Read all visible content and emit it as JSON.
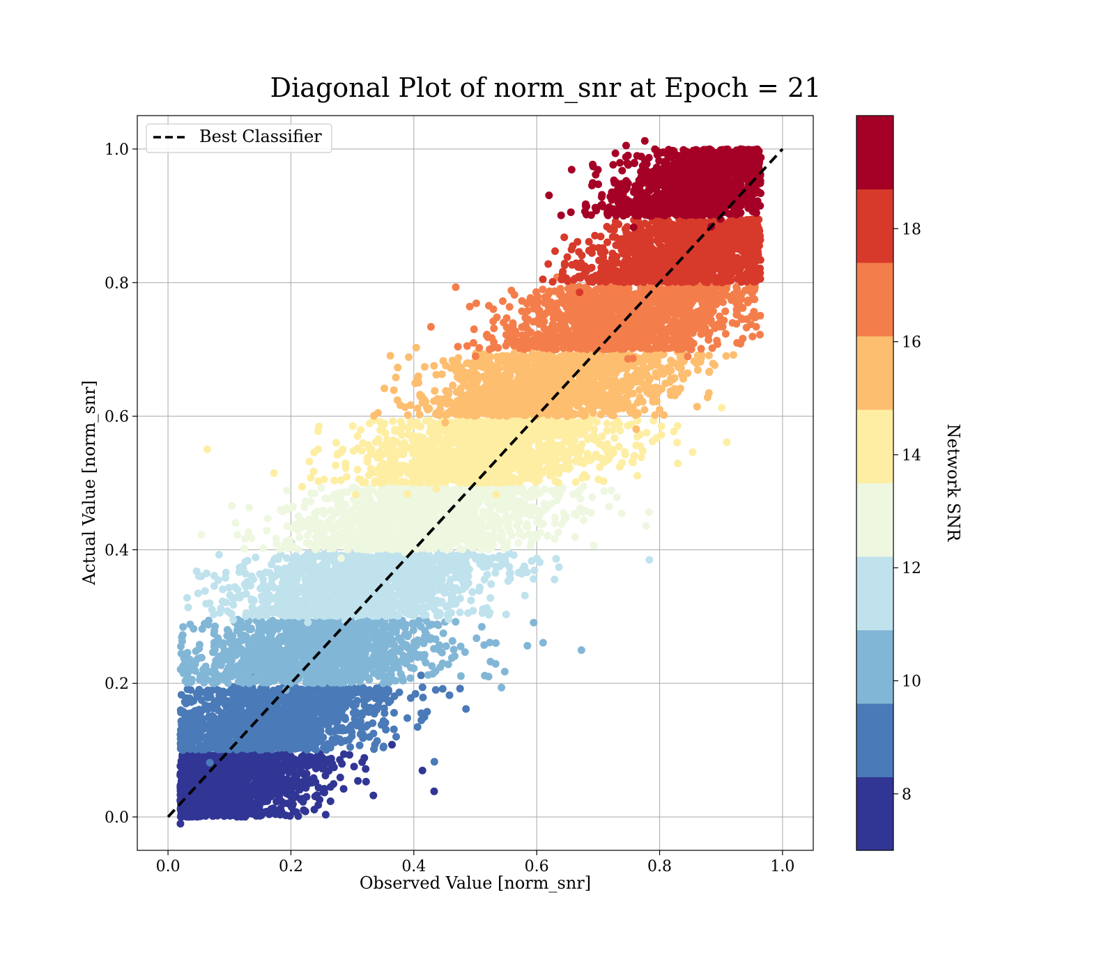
{
  "chart_data": {
    "type": "scatter",
    "title": "Diagonal Plot of norm_snr at Epoch = 21",
    "xlabel": "Observed Value [norm_snr]",
    "ylabel": "Actual Value [norm_snr]",
    "xlim": [
      -0.05,
      1.05
    ],
    "ylim": [
      -0.05,
      1.05
    ],
    "xticks": [
      "0.0",
      "0.2",
      "0.4",
      "0.6",
      "0.8",
      "1.0"
    ],
    "yticks": [
      "0.0",
      "0.2",
      "0.4",
      "0.6",
      "0.8",
      "1.0"
    ],
    "grid": true,
    "legend": {
      "placement": "upper-left",
      "entries": [
        {
          "label": "Best Classifier",
          "style": "black dashed line"
        }
      ]
    },
    "reference_line": {
      "x": [
        0.0,
        1.0
      ],
      "y": [
        0.0,
        1.0
      ]
    },
    "colorbar": {
      "label": "Network SNR",
      "ticks": [
        "8",
        "10",
        "12",
        "14",
        "16",
        "18"
      ],
      "range": [
        7,
        20
      ],
      "colormap": "RdYlBu_r (10 discrete bins)",
      "bins": [
        {
          "color": "#313695"
        },
        {
          "color": "#4a7ab7"
        },
        {
          "color": "#82b6d6"
        },
        {
          "color": "#bfe2ed"
        },
        {
          "color": "#eef7e0"
        },
        {
          "color": "#feeea3"
        },
        {
          "color": "#fdbe70"
        },
        {
          "color": "#f47e4b"
        },
        {
          "color": "#d73a2b"
        },
        {
          "color": "#a50026"
        }
      ]
    },
    "scatter_bands": [
      {
        "y": [
          0.0,
          0.095
        ],
        "x_center_offset": 0.04,
        "x_spread": 0.08
      },
      {
        "y": [
          0.1,
          0.195
        ],
        "x_center_offset": 0.02,
        "x_spread": 0.09
      },
      {
        "y": [
          0.2,
          0.295
        ],
        "x_center_offset": -0.01,
        "x_spread": 0.095
      },
      {
        "y": [
          0.3,
          0.395
        ],
        "x_center_offset": -0.03,
        "x_spread": 0.1
      },
      {
        "y": [
          0.4,
          0.495
        ],
        "x_center_offset": -0.03,
        "x_spread": 0.1
      },
      {
        "y": [
          0.5,
          0.595
        ],
        "x_center_offset": -0.03,
        "x_spread": 0.1
      },
      {
        "y": [
          0.6,
          0.695
        ],
        "x_center_offset": -0.02,
        "x_spread": 0.095
      },
      {
        "y": [
          0.7,
          0.795
        ],
        "x_center_offset": 0.0,
        "x_spread": 0.09
      },
      {
        "y": [
          0.8,
          0.895
        ],
        "x_center_offset": 0.01,
        "x_spread": 0.08
      },
      {
        "y": [
          0.9,
          1.0
        ],
        "x_center_offset": -0.08,
        "x_spread": 0.07
      }
    ]
  }
}
